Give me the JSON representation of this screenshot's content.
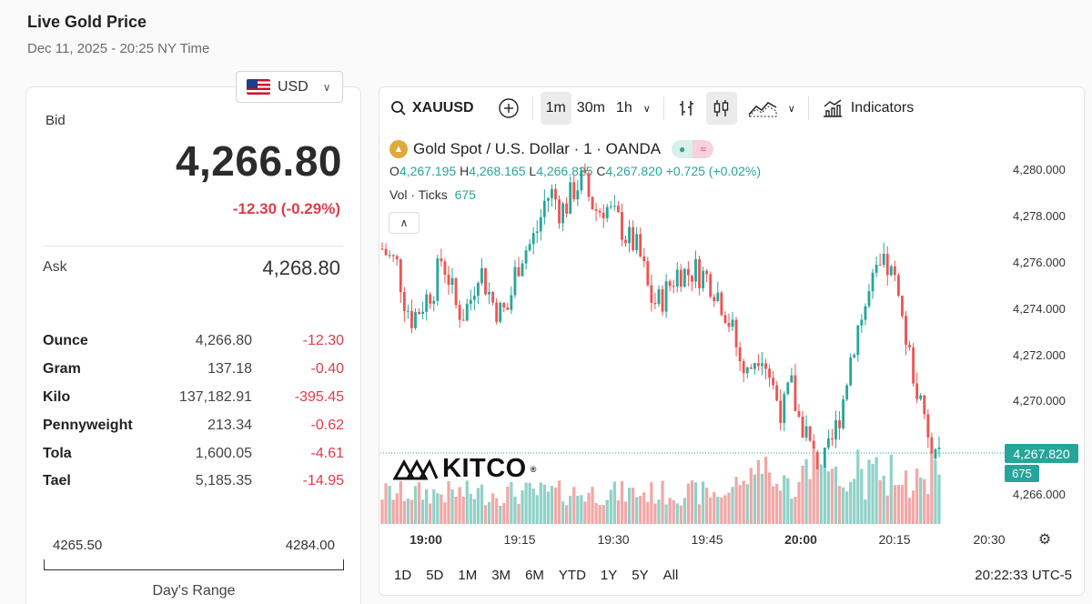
{
  "header": {
    "title": "Live Gold Price",
    "subtitle": "Dec 11, 2025 - 20:25 NY Time"
  },
  "currency": {
    "selected": "USD",
    "flag_icon": "us-flag-icon"
  },
  "quote": {
    "bid_label": "Bid",
    "bid": "4,266.80",
    "change": "-12.30 (-0.29%)",
    "ask_label": "Ask",
    "ask": "4,268.80"
  },
  "units": [
    {
      "name": "Ounce",
      "value": "4,266.80",
      "change": "-12.30"
    },
    {
      "name": "Gram",
      "value": "137.18",
      "change": "-0.40"
    },
    {
      "name": "Kilo",
      "value": "137,182.91",
      "change": "-395.45"
    },
    {
      "name": "Pennyweight",
      "value": "213.34",
      "change": "-0.62"
    },
    {
      "name": "Tola",
      "value": "1,600.05",
      "change": "-4.61"
    },
    {
      "name": "Tael",
      "value": "5,185.35",
      "change": "-14.95"
    }
  ],
  "range": {
    "low": "4265.50",
    "high": "4284.00",
    "label": "Day's Range"
  },
  "toolbar": {
    "symbol": "XAUUSD",
    "intervals": [
      "1m",
      "30m",
      "1h"
    ],
    "active_interval": "1m",
    "indicators_label": "Indicators"
  },
  "chart_legend": {
    "title": "Gold Spot / U.S. Dollar · 1 · OANDA",
    "o_label": "O",
    "o": "4,267.195",
    "h_label": "H",
    "h": "4,268.165",
    "l_label": "L",
    "l": "4,266.825",
    "c_label": "C",
    "c": "4,267.820",
    "change": "+0.725 (+0.02%)",
    "vol_label": "Vol · Ticks",
    "vol": "675"
  },
  "brand": "KITCO",
  "price_tag": "4,267.820",
  "vol_tag": "675",
  "colors": {
    "up": "#26a69a",
    "down": "#ef5350",
    "vol_up": "#8fd1c8",
    "vol_down": "#f2a7a6",
    "negative": "#e03c4b"
  },
  "timeframes": [
    "1D",
    "5D",
    "1M",
    "3M",
    "6M",
    "YTD",
    "1Y",
    "5Y",
    "All"
  ],
  "clock": "20:22:33 UTC-5",
  "chart_data": {
    "type": "candlestick",
    "x_ticks": [
      "19:00",
      "19:15",
      "19:30",
      "19:45",
      "20:00",
      "20:15",
      "20:30"
    ],
    "y_ticks": [
      "4,280.000",
      "4,278.000",
      "4,276.000",
      "4,274.000",
      "4,272.000",
      "4,270.000",
      "4,266.000"
    ],
    "ylim": [
      4265.0,
      4281.5
    ],
    "close_path": [
      4276.6,
      4276.2,
      4275.9,
      4274.4,
      4273.6,
      4274.0,
      4274.5,
      4275.0,
      4276.2,
      4275.3,
      4274.0,
      4273.8,
      4274.5,
      4275.9,
      4275.0,
      4274.2,
      4273.8,
      4274.0,
      4275.7,
      4276.5,
      4276.8,
      4277.5,
      4278.8,
      4279.0,
      4278.2,
      4278.6,
      4279.3,
      4279.6,
      4278.7,
      4278.2,
      4278.5,
      4278.0,
      4277.7,
      4277.0,
      4276.8,
      4276.0,
      4274.5,
      4274.2,
      4274.6,
      4275.2,
      4275.7,
      4275.5,
      4275.7,
      4275.5,
      4275.3,
      4274.8,
      4274.1,
      4273.2,
      4272.0,
      4271.0,
      4271.8,
      4272.4,
      4271.3,
      4270.2,
      4269.5,
      4270.8,
      4269.3,
      4268.8,
      4267.5,
      4267.0,
      4267.6,
      4268.7,
      4270.0,
      4271.8,
      4273.2,
      4274.0,
      4275.0,
      4275.6,
      4275.8,
      4275.1,
      4273.5,
      4272.0,
      4270.5,
      4269.0,
      4267.5,
      4267.8
    ],
    "volume_note": "Vol · Ticks last bar 675"
  }
}
